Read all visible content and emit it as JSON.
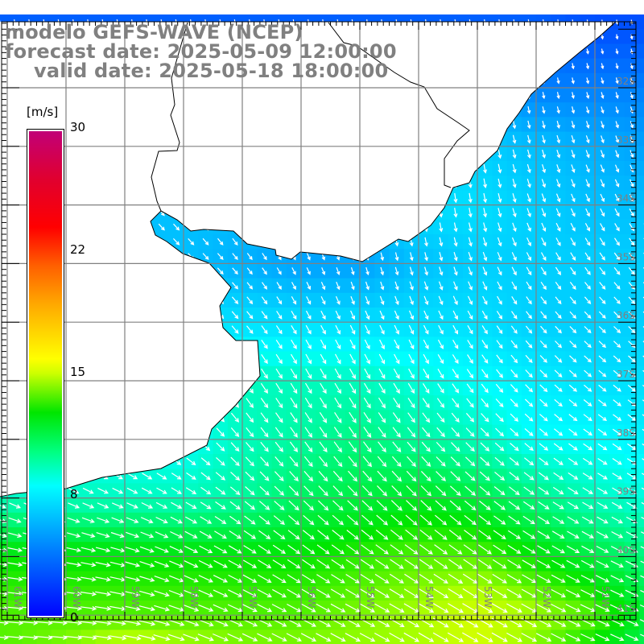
{
  "title": {
    "model": "modelo GEFS-WAVE (NCEP)",
    "forecast": "forecast date: 2025-05-09 12:00:00",
    "valid": "valid date: 2025-05-18 18:00:00"
  },
  "colorbar": {
    "unit": "[m/s]",
    "ticks": [
      "30",
      "22",
      "15",
      "8",
      "0"
    ],
    "colors": {
      "0": "#0000ff",
      "8": "#00ffff",
      "12": "#00e600",
      "16": "#ffff00",
      "23": "#ff0000",
      "30": "#c0007a"
    }
  },
  "lat_labels": [
    "32S",
    "33S",
    "34S",
    "35S",
    "36S",
    "37S",
    "38S",
    "39S",
    "40S",
    "41S"
  ],
  "lon_labels": [
    "61W",
    "60W",
    "59W",
    "58W",
    "57W",
    "56W",
    "55W",
    "54W",
    "53W",
    "52W",
    "51W"
  ],
  "field": {
    "description_units": "m/s",
    "lats": [
      -31,
      -32,
      -33,
      -34,
      -35,
      -36,
      -37,
      -38,
      -39,
      -40,
      -41,
      -42
    ],
    "lons": [
      -61,
      -60,
      -59,
      -58,
      -57,
      -56,
      -55,
      -54,
      -53,
      -52,
      -51,
      -50
    ],
    "speed": [
      [
        3,
        3,
        3,
        3,
        3,
        3,
        3,
        3,
        3,
        3,
        2.5,
        2.5
      ],
      [
        6,
        6,
        6,
        6,
        6,
        6,
        6,
        6,
        5,
        4,
        4,
        4
      ],
      [
        6,
        6,
        6,
        6,
        6,
        6,
        6,
        6,
        6.5,
        6,
        5.5,
        5
      ],
      [
        6,
        6,
        6,
        6,
        6,
        6,
        6.5,
        7,
        7,
        6.5,
        6,
        6
      ],
      [
        6,
        6,
        6,
        6,
        5.5,
        5,
        5,
        6,
        6.5,
        6.5,
        6.5,
        6.5
      ],
      [
        7,
        7,
        7,
        7,
        7,
        7,
        7,
        7,
        7,
        6.5,
        6.5,
        6.5
      ],
      [
        8,
        8,
        8,
        8,
        9,
        9,
        9,
        8.5,
        8,
        7.5,
        7,
        7
      ],
      [
        8,
        8,
        8,
        8,
        9,
        9.5,
        10,
        9.5,
        9,
        8,
        8,
        7.5
      ],
      [
        9,
        9,
        9,
        9,
        9.5,
        10.5,
        11,
        11.5,
        11,
        10,
        9,
        8.5
      ],
      [
        12,
        12,
        12,
        12,
        12,
        12,
        12.5,
        13,
        13,
        12,
        11,
        10
      ],
      [
        13,
        13,
        13,
        13,
        13,
        13,
        13.5,
        14,
        15,
        14,
        13,
        11
      ],
      [
        13,
        14,
        16,
        15,
        14,
        14,
        14,
        14,
        15,
        13,
        11,
        10
      ]
    ],
    "direction_to_deg": [
      [
        170,
        170,
        170,
        170,
        170,
        170,
        170,
        170,
        170,
        170,
        170,
        170
      ],
      [
        160,
        160,
        160,
        160,
        165,
        170,
        175,
        175,
        175,
        170,
        165,
        165
      ],
      [
        150,
        150,
        150,
        150,
        160,
        170,
        175,
        175,
        170,
        165,
        160,
        160
      ],
      [
        140,
        140,
        140,
        140,
        150,
        165,
        175,
        175,
        170,
        160,
        155,
        150
      ],
      [
        130,
        130,
        130,
        135,
        140,
        155,
        165,
        165,
        160,
        150,
        145,
        140
      ],
      [
        130,
        130,
        130,
        135,
        140,
        150,
        155,
        155,
        150,
        140,
        135,
        135
      ],
      [
        130,
        130,
        130,
        135,
        145,
        150,
        150,
        150,
        145,
        135,
        130,
        130
      ],
      [
        125,
        125,
        125,
        130,
        140,
        145,
        145,
        140,
        135,
        130,
        125,
        125
      ],
      [
        115,
        115,
        115,
        120,
        130,
        135,
        135,
        135,
        130,
        125,
        120,
        120
      ],
      [
        100,
        100,
        105,
        115,
        120,
        125,
        125,
        125,
        125,
        120,
        118,
        115
      ],
      [
        95,
        95,
        100,
        110,
        115,
        118,
        118,
        120,
        120,
        118,
        115,
        115
      ],
      [
        95,
        95,
        100,
        110,
        115,
        118,
        118,
        120,
        120,
        118,
        115,
        115
      ]
    ]
  }
}
